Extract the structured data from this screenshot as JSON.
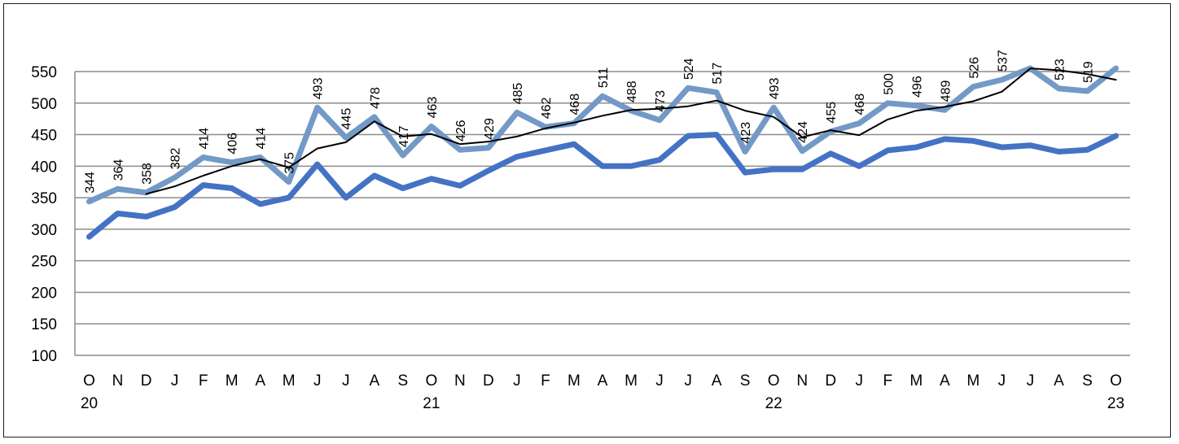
{
  "chart_data": {
    "type": "line",
    "title": "",
    "xlabel": "",
    "ylabel": "",
    "ylim": [
      100,
      550
    ],
    "y_ticks": [
      "100",
      "150",
      "200",
      "250",
      "300",
      "350",
      "400",
      "450",
      "500",
      "550"
    ],
    "grid": true,
    "legend": "none",
    "categories": [
      "O",
      "N",
      "D",
      "J",
      "F",
      "M",
      "A",
      "M",
      "J",
      "J",
      "A",
      "S",
      "O",
      "N",
      "D",
      "J",
      "F",
      "M",
      "A",
      "M",
      "J",
      "J",
      "A",
      "S",
      "O",
      "N",
      "D",
      "J",
      "F",
      "M",
      "A",
      "M",
      "J",
      "J",
      "A",
      "S",
      "O"
    ],
    "year_labels": [
      {
        "index": 0,
        "label": "20"
      },
      {
        "index": 12,
        "label": "21"
      },
      {
        "index": 24,
        "label": "22"
      },
      {
        "index": 36,
        "label": "23"
      }
    ],
    "series": [
      {
        "color": "#7399c6",
        "values": [
          344,
          364,
          358,
          382,
          414,
          406,
          414,
          375,
          493,
          445,
          478,
          417,
          463,
          426,
          429,
          485,
          462,
          468,
          511,
          488,
          473,
          524,
          517,
          423,
          493,
          424,
          455,
          468,
          500,
          496,
          489,
          526,
          537,
          565,
          523,
          519,
          560
        ],
        "data_labels": [
          "344",
          "364",
          "358",
          "382",
          "414",
          "406",
          "414",
          "375",
          "493",
          "445",
          "478",
          "417",
          "463",
          "426",
          "429",
          "485",
          "462",
          "468",
          "511",
          "488",
          "473",
          "524",
          "517",
          "423",
          "493",
          "424",
          "455",
          "468",
          "500",
          "496",
          "489",
          "526",
          "537",
          "",
          "523",
          "519",
          ""
        ]
      },
      {
        "color": "#4472c4",
        "values": [
          288,
          325,
          320,
          335,
          370,
          365,
          340,
          350,
          403,
          350,
          385,
          365,
          380,
          369,
          393,
          415,
          425,
          435,
          400,
          400,
          410,
          448,
          450,
          390,
          395,
          395,
          420,
          400,
          425,
          430,
          443,
          440,
          430,
          433,
          423,
          426,
          448
        ]
      },
      {
        "color": "#000000",
        "values": [
          null,
          null,
          356,
          368,
          385,
          400,
          411,
          398,
          428,
          438,
          471,
          447,
          451,
          435,
          439,
          447,
          460,
          469,
          480,
          489,
          491,
          495,
          504,
          488,
          478,
          446,
          457,
          449,
          474,
          488,
          494,
          503,
          518,
          555,
          552,
          546,
          537
        ]
      }
    ]
  }
}
